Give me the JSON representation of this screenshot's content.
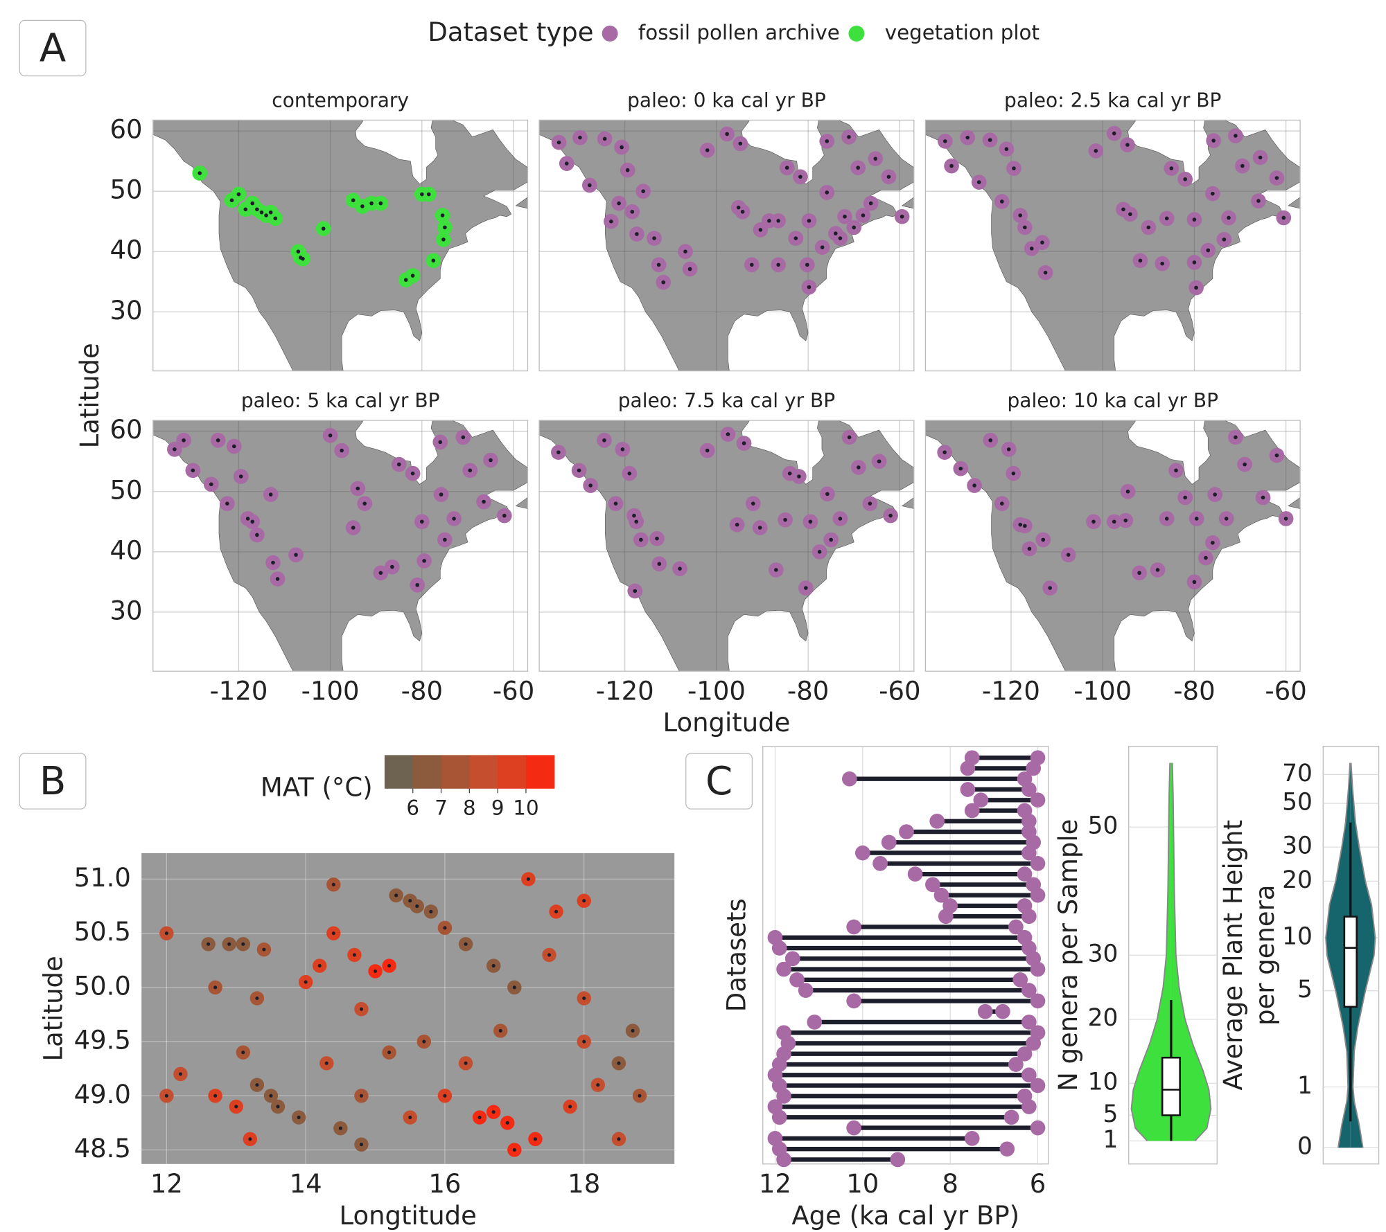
{
  "chart_data": [
    {
      "type": "map",
      "panel": "A",
      "title": "contemporary",
      "legend_title": "Dataset type",
      "xlabel": "Longitude",
      "ylabel": "Latitude",
      "xlim": [
        -138.7,
        -56.9
      ],
      "ylim": [
        20.2,
        61.8
      ],
      "xticks": [
        -120,
        -100,
        -80,
        -60
      ],
      "yticks": [
        30,
        40,
        50,
        60
      ],
      "grid": true,
      "series": [
        {
          "name": "vegetation plot",
          "color": "#3ee03e",
          "x": [
            -128.5,
            -121.5,
            -120,
            -118.5,
            -117,
            -116,
            -115,
            -114,
            -113,
            -112,
            -107,
            -106.5,
            -106,
            -101.5,
            -95,
            -93,
            -91,
            -89,
            -80,
            -78.5,
            -75.5,
            -75,
            -75.3,
            -77.5,
            -82,
            -83.5
          ],
          "y": [
            53,
            48.5,
            49.5,
            47,
            48,
            47,
            46.5,
            46,
            46.5,
            45.5,
            40,
            39,
            38.8,
            43.8,
            48.5,
            47.5,
            48,
            48,
            49.5,
            49.5,
            46,
            44,
            42,
            38.5,
            36,
            35.3
          ]
        }
      ]
    },
    {
      "type": "map",
      "title": "paleo: 0 ka cal yr BP",
      "xlim": [
        -138.7,
        -56.9
      ],
      "ylim": [
        20.2,
        61.8
      ],
      "xticks": [
        -120,
        -100,
        -80,
        -60
      ],
      "yticks": [
        30,
        40,
        50,
        60
      ],
      "grid": true,
      "series": [
        {
          "name": "fossil pollen archive",
          "color": "#a86aa4",
          "x": [
            -134.4,
            -129.8,
            -132.7,
            -127.7,
            -124.4,
            -120.7,
            -119.4,
            -121.3,
            -118.4,
            -117.4,
            -113.6,
            -112.6,
            -111.6,
            -106.8,
            -105.8,
            -102,
            -97.7,
            -94.8,
            -94.3,
            -92.3,
            -86.5,
            -90.4,
            -86.5,
            -84.6,
            -81.7,
            -79.8,
            -80.2,
            -79.8,
            -75.9,
            -75.9,
            -71.1,
            -69.1,
            -66.3,
            -65.3,
            -62.4,
            -59.5,
            -72,
            -73,
            -76.9,
            -82.7,
            -88.5,
            -95.2,
            -123,
            -116,
            -70,
            -74,
            -68
          ],
          "y": [
            58.1,
            58.9,
            54.6,
            51,
            58.7,
            57.3,
            53.5,
            48,
            46.6,
            42.9,
            42.2,
            37.8,
            34.9,
            40,
            37.1,
            56.8,
            59.5,
            57.9,
            46.6,
            37.8,
            37.8,
            43.6,
            45.1,
            53.9,
            52.4,
            45.1,
            37.8,
            34.1,
            49.8,
            58.3,
            59,
            53.9,
            48,
            55.4,
            52.4,
            45.8,
            45.8,
            42.2,
            40.7,
            42.2,
            45.1,
            47.3,
            45,
            50,
            44,
            43,
            46
          ]
        }
      ]
    },
    {
      "type": "map",
      "title": "paleo: 2.5 ka cal yr BP",
      "xlim": [
        -138.7,
        -56.9
      ],
      "ylim": [
        20.2,
        61.8
      ],
      "xticks": [
        -120,
        -100,
        -80,
        -60
      ],
      "yticks": [
        30,
        40,
        50,
        60
      ],
      "grid": true,
      "series": [
        {
          "name": "fossil pollen archive",
          "color": "#a86aa4",
          "x": [
            -134.4,
            -129.5,
            -133,
            -127,
            -124.6,
            -121,
            -119.4,
            -122,
            -118,
            -115.5,
            -113.2,
            -112.5,
            -101.5,
            -97.5,
            -94.6,
            -94,
            -91.8,
            -87,
            -90,
            -86,
            -85,
            -82,
            -80,
            -80,
            -79.6,
            -76,
            -75.8,
            -71,
            -69.5,
            -66,
            -65.6,
            -62,
            -60.5,
            -72.5,
            -73.5,
            -77,
            -95.5,
            -117
          ],
          "y": [
            58.3,
            58.9,
            54.2,
            51.5,
            58.5,
            57,
            53.8,
            48.3,
            46,
            40.5,
            41.5,
            36.5,
            56.7,
            59.6,
            57.7,
            46.2,
            38.5,
            38,
            44,
            45.5,
            53.8,
            52,
            45.3,
            38.2,
            34,
            49.6,
            58.4,
            59.2,
            54.2,
            48.4,
            55.6,
            52.2,
            45.6,
            45.6,
            42,
            40.2,
            47,
            44
          ]
        }
      ]
    },
    {
      "type": "map",
      "title": "paleo: 5 ka cal yr BP",
      "xlim": [
        -138.7,
        -56.9
      ],
      "ylim": [
        20.2,
        61.8
      ],
      "xticks": [
        -120,
        -100,
        -80,
        -60
      ],
      "yticks": [
        30,
        40,
        50,
        60
      ],
      "grid": true,
      "series": [
        {
          "name": "fossil pollen archive",
          "color": "#a86aa4",
          "x": [
            -134,
            -130,
            -132,
            -126,
            -124.5,
            -121,
            -119.5,
            -122.5,
            -118,
            -116,
            -113,
            -112.5,
            -111.5,
            -107.5,
            -100,
            -97.5,
            -94,
            -92.5,
            -89,
            -86.5,
            -85,
            -82,
            -80,
            -81,
            -79.5,
            -75.8,
            -76,
            -71,
            -69.5,
            -66.5,
            -65,
            -62,
            -73,
            -75,
            -95,
            -117
          ],
          "y": [
            57,
            53.5,
            58.5,
            51.2,
            58.5,
            57.5,
            52.5,
            48,
            45.5,
            42.8,
            49.5,
            38.2,
            35.5,
            39.5,
            59.3,
            56.8,
            50.5,
            48,
            36.5,
            37.5,
            54.5,
            53,
            45,
            34.5,
            38.5,
            49.5,
            58.2,
            59,
            53.5,
            48.3,
            55.2,
            46,
            45.5,
            42,
            44,
            45
          ]
        }
      ]
    },
    {
      "type": "map",
      "title": "paleo: 7.5 ka cal yr BP",
      "xlim": [
        -138.7,
        -56.9
      ],
      "ylim": [
        20.2,
        61.8
      ],
      "xticks": [
        -120,
        -100,
        -80,
        -60
      ],
      "yticks": [
        30,
        40,
        50,
        60
      ],
      "grid": true,
      "series": [
        {
          "name": "fossil pollen archive",
          "color": "#a86aa4",
          "x": [
            -134.5,
            -130,
            -127.5,
            -124.5,
            -120.5,
            -119,
            -122,
            -118,
            -116.5,
            -113,
            -112.5,
            -108,
            -117.8,
            -102,
            -97.5,
            -94,
            -92,
            -87,
            -90.5,
            -85,
            -84,
            -82,
            -79.5,
            -80.5,
            -77.5,
            -75.8,
            -71,
            -69,
            -66.5,
            -64.5,
            -62,
            -73,
            -75,
            -95.5,
            -117.5
          ],
          "y": [
            56.5,
            53.5,
            51,
            58.5,
            57,
            53,
            48,
            46,
            42,
            42.2,
            38,
            37.2,
            33.5,
            56.8,
            59.5,
            58,
            48,
            37,
            44,
            45.3,
            53,
            52.5,
            45,
            34,
            40,
            49.6,
            59,
            54,
            48,
            55,
            46,
            45.5,
            42,
            44.5,
            45
          ]
        }
      ]
    },
    {
      "type": "map",
      "title": "paleo: 10 ka cal yr BP",
      "xlim": [
        -138.7,
        -56.9
      ],
      "ylim": [
        20.2,
        61.8
      ],
      "xticks": [
        -120,
        -100,
        -80,
        -60
      ],
      "yticks": [
        30,
        40,
        50,
        60
      ],
      "grid": true,
      "series": [
        {
          "name": "fossil pollen archive",
          "color": "#a86aa4",
          "x": [
            -134.5,
            -131,
            -128,
            -124.5,
            -120.5,
            -119.5,
            -122,
            -118,
            -116,
            -113,
            -111.5,
            -107.5,
            -102,
            -97.5,
            -94.5,
            -92,
            -88,
            -84,
            -82,
            -79.5,
            -80,
            -77.5,
            -75.5,
            -71,
            -69,
            -65,
            -62,
            -60,
            -73,
            -76,
            -95,
            -117,
            -86
          ],
          "y": [
            56.5,
            53.8,
            51,
            58.5,
            57,
            53,
            48,
            44.5,
            40.5,
            42,
            34,
            39.5,
            45,
            45,
            50,
            36.5,
            37,
            53.5,
            49,
            45.5,
            35,
            39,
            49.5,
            59,
            54.5,
            49,
            56,
            45.5,
            45.5,
            41.5,
            45.2,
            44.3,
            45.5
          ]
        }
      ]
    },
    {
      "type": "color-scatter",
      "panel": "B",
      "xlabel": "Longtitude",
      "ylabel": "Latitude",
      "colorbar_label": "MAT (°C)",
      "clim": [
        5,
        11
      ],
      "cticks": [
        6,
        7,
        8,
        9,
        10
      ],
      "colors": [
        "#6e6350",
        "#8c5a3c",
        "#a85536",
        "#c44e2e",
        "#dd4021",
        "#f52a12"
      ],
      "xlim": [
        11.64,
        19.3
      ],
      "ylim": [
        48.37,
        51.24
      ],
      "xticks": [
        12,
        14,
        16,
        18
      ],
      "yticks": [
        48.5,
        {
          "value": 49,
          "label": "49.0"
        },
        49.5,
        {
          "value": 50,
          "label": "50.0"
        },
        50.5,
        {
          "value": 51,
          "label": "51.0"
        }
      ],
      "grid": true,
      "x": [
        12.0,
        12.2,
        12.0,
        12.6,
        12.9,
        13.1,
        12.7,
        13.4,
        13.3,
        13.1,
        13.3,
        13.5,
        13.6,
        13.9,
        12.7,
        13.0,
        13.2,
        14.0,
        14.2,
        14.4,
        14.4,
        14.7,
        15.0,
        15.2,
        15.5,
        15.6,
        15.8,
        15.3,
        16.0,
        16.3,
        16.7,
        17.0,
        16.8,
        17.2,
        17.6,
        18.0,
        17.5,
        18.0,
        16.3,
        15.7,
        15.2,
        14.8,
        14.5,
        14.8,
        16.5,
        16.7,
        16.9,
        17.0,
        17.3,
        17.8,
        18.2,
        18.5,
        18.7,
        18.8,
        18.5,
        18.0,
        16.0,
        15.5,
        14.3,
        14.8
      ],
      "y": [
        50.5,
        49.2,
        49.0,
        50.4,
        50.4,
        50.4,
        50.0,
        50.35,
        49.9,
        49.4,
        49.1,
        49.0,
        48.9,
        48.8,
        49.0,
        48.9,
        48.6,
        50.05,
        50.2,
        50.5,
        50.95,
        50.3,
        50.15,
        50.2,
        50.8,
        50.75,
        50.7,
        50.85,
        50.55,
        50.4,
        50.2,
        50.0,
        49.6,
        51.0,
        50.7,
        50.8,
        50.3,
        49.9,
        49.3,
        49.5,
        49.4,
        49.0,
        48.7,
        48.55,
        48.8,
        48.85,
        48.75,
        48.5,
        48.6,
        48.9,
        49.1,
        49.3,
        49.6,
        49.0,
        48.6,
        49.5,
        49.0,
        48.8,
        49.3,
        49.8
      ],
      "mat": [
        8,
        8,
        8.5,
        6,
        6,
        6.2,
        7,
        7.5,
        7.8,
        7.5,
        6.3,
        6,
        6.2,
        6.5,
        9.5,
        9,
        9.5,
        9,
        9.5,
        9.5,
        7,
        9.8,
        10,
        10,
        6,
        6,
        6.2,
        6.5,
        7,
        6.8,
        6.3,
        6,
        7.8,
        9.5,
        9,
        9.5,
        8.5,
        8.5,
        8,
        7.5,
        7.8,
        7.5,
        6.5,
        6.8,
        10.5,
        10.5,
        10.5,
        10.5,
        10,
        9.5,
        8.5,
        6.5,
        6.2,
        7,
        8.5,
        8,
        9,
        8,
        8,
        8.5
      ]
    },
    {
      "type": "range",
      "panel": "C",
      "xlabel": "Age (ka cal yr BP)",
      "ylabel": "Datasets",
      "color": "#a86aa4",
      "line_color": "#1c1e2c",
      "xlim": [
        12.28,
        5.76
      ],
      "xticks": [
        12,
        10,
        8,
        6
      ],
      "grid": true,
      "start": [
        7.5,
        7.6,
        10.3,
        7.6,
        7.3,
        7.5,
        8.3,
        9.0,
        9.4,
        10.0,
        9.6,
        8.8,
        8.4,
        8.2,
        8.0,
        8.1,
        10.2,
        12.0,
        11.9,
        11.6,
        11.8,
        11.5,
        11.3,
        10.2,
        7.2,
        11.1,
        11.8,
        11.7,
        11.8,
        11.9,
        12.0,
        11.9,
        11.8,
        12.0,
        11.9,
        10.2,
        12.0,
        11.9,
        11.8
      ],
      "end": [
        6.0,
        6.1,
        6.3,
        6.2,
        6.0,
        6.3,
        6.2,
        6.2,
        6.1,
        6.2,
        6.0,
        6.3,
        6.1,
        6.0,
        6.3,
        6.2,
        6.5,
        6.3,
        6.2,
        6.1,
        6.0,
        6.4,
        6.2,
        6.0,
        6.8,
        6.2,
        6.0,
        6.1,
        6.3,
        6.5,
        6.2,
        6.0,
        6.3,
        6.2,
        6.6,
        6.0,
        7.5,
        6.7,
        9.2
      ]
    },
    {
      "type": "violin",
      "ylabel": "N genera per Sample",
      "color": "#3ee03e",
      "ylim": [
        -2.6,
        62.6
      ],
      "yticks": [
        1,
        5,
        10,
        20,
        30,
        50
      ],
      "grid": true,
      "density_y": [
        1,
        3,
        6,
        9,
        12,
        16,
        20,
        25,
        30,
        35,
        40,
        45,
        50,
        55,
        60
      ],
      "density": [
        0.6,
        0.9,
        1.0,
        0.95,
        0.8,
        0.55,
        0.35,
        0.2,
        0.12,
        0.1,
        0.08,
        0.07,
        0.06,
        0.05,
        0.03
      ],
      "box": {
        "whisker_low": 1,
        "q1": 5,
        "median": 9,
        "q3": 14,
        "whisker_high": 23
      }
    },
    {
      "type": "violin",
      "ylabel": [
        "Average Plant Height",
        "per genera"
      ],
      "color": "#16646c",
      "yscale": "log1p",
      "ylim": [
        -0.17,
        97
      ],
      "yticks": [
        0,
        1,
        5,
        10,
        20,
        30,
        50,
        70
      ],
      "grid": true,
      "density_y": [
        0,
        0.3,
        0.7,
        1,
        2,
        3,
        5,
        8,
        10,
        15,
        20,
        30,
        40,
        60,
        80
      ],
      "density": [
        0.5,
        0.35,
        0.15,
        0.1,
        0.15,
        0.3,
        0.6,
        0.95,
        1.0,
        0.85,
        0.6,
        0.35,
        0.2,
        0.08,
        0.02
      ],
      "box": {
        "whisker_low": 0.35,
        "q1": 4,
        "median": 8.8,
        "q3": 13,
        "whisker_high": 40
      }
    }
  ]
}
